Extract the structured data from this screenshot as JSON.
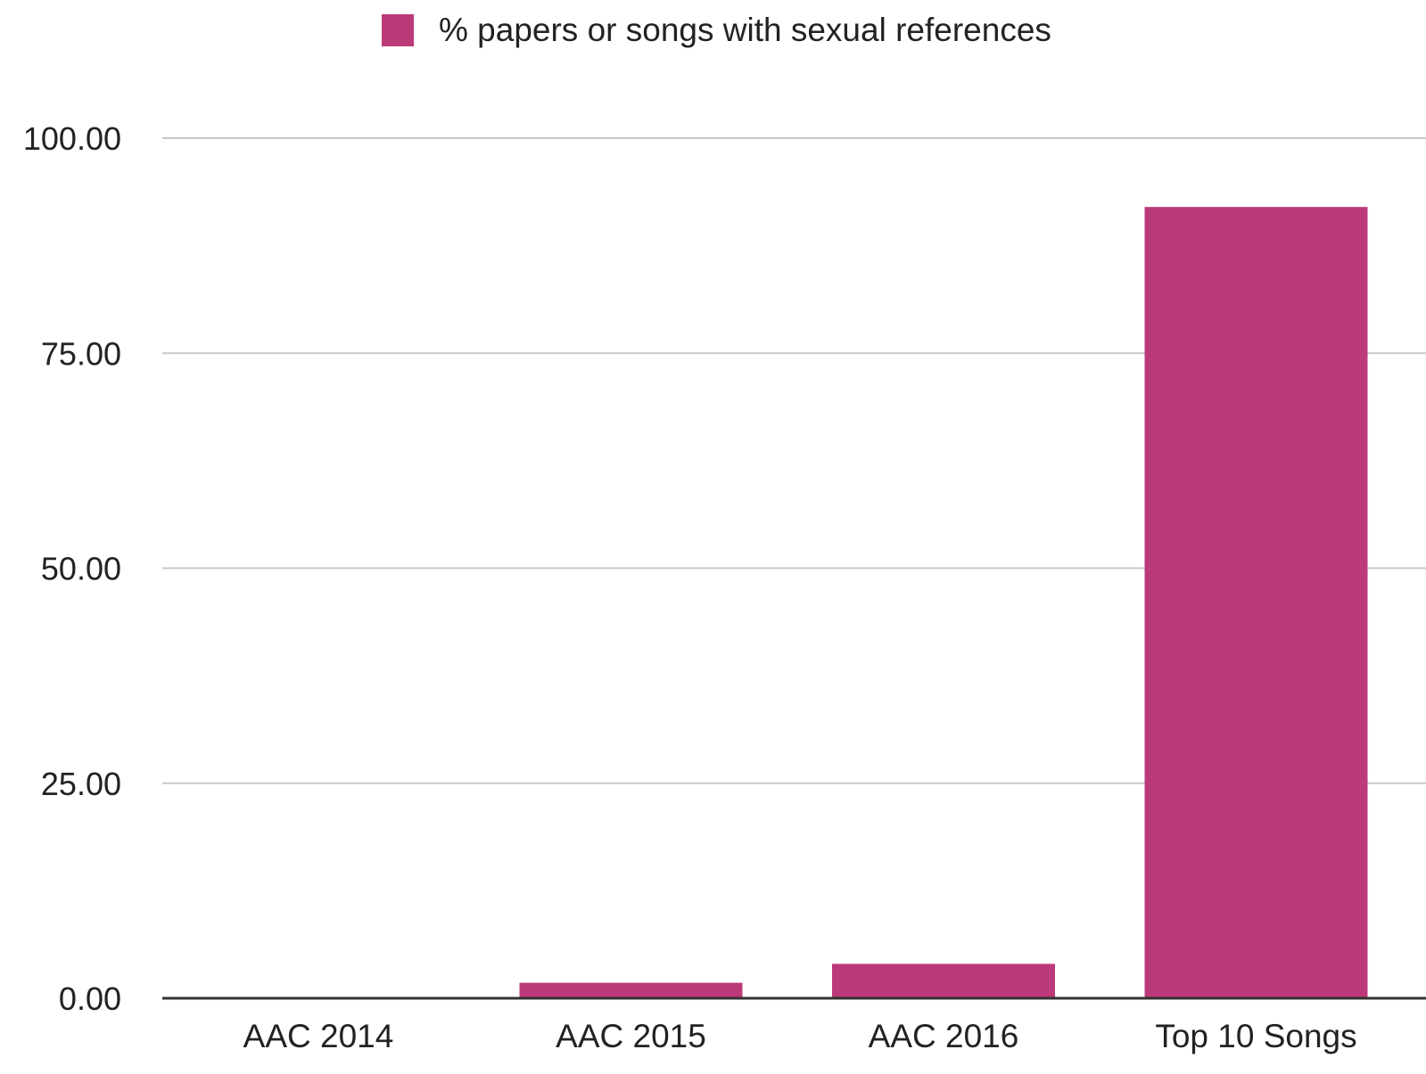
{
  "chart_data": {
    "type": "bar",
    "categories": [
      "AAC 2014",
      "AAC 2015",
      "AAC 2016",
      "Top 10 Songs"
    ],
    "series": [
      {
        "name": "% papers or songs with sexual references",
        "values": [
          0,
          1.8,
          4.0,
          92.0
        ],
        "color": "#bc3a79"
      }
    ],
    "ylim": [
      0,
      100
    ],
    "yticks": [
      0,
      25,
      50,
      75,
      100
    ],
    "ytick_labels": [
      "0.00",
      "25.00",
      "50.00",
      "75.00",
      "100.00"
    ],
    "grid": true,
    "legend_position": "top-center",
    "gridline_color": "#c8c8c8",
    "axis_color": "#333333"
  }
}
